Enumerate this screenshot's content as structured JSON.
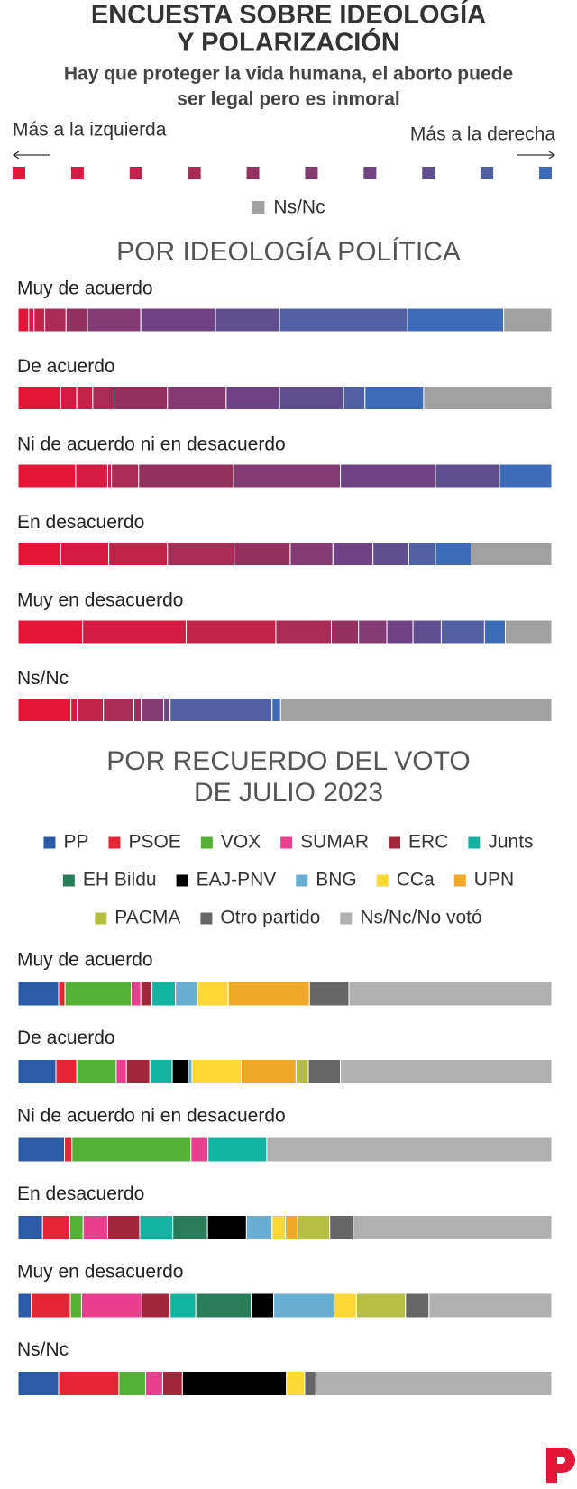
{
  "title_lines": [
    "ENCUESTA SOBRE IDEOLOGÍA",
    "Y POLARIZACIÓN"
  ],
  "subtitle_lines": [
    "Hay que proteger la vida humana, el aborto puede",
    "ser legal pero es inmoral"
  ],
  "chart_data": [
    {
      "type": "bar",
      "orientation": "horizontal",
      "stacked": true,
      "title_lines": [
        "POR IDEOLOGÍA POLÍTICA"
      ],
      "left_label": "Más a la izquierda",
      "right_label": "Más a la derecha",
      "xlim": [
        0,
        100
      ],
      "categories": [
        "Muy de acuerdo",
        "De acuerdo",
        "Ni de acuerdo ni en desacuerdo",
        "En desacuerdo",
        "Muy en desacuerdo",
        "Ns/Nc"
      ],
      "series": [
        {
          "color": "#e4163a",
          "values": [
            2,
            8,
            10.8,
            8,
            12.1,
            9.9
          ]
        },
        {
          "color": "#d41c42",
          "values": [
            1,
            3,
            6,
            9,
            19.4,
            1.2
          ]
        },
        {
          "color": "#c0244b",
          "values": [
            2,
            3,
            0.7,
            11,
            16.8,
            4.9
          ]
        },
        {
          "color": "#a82b55",
          "values": [
            4,
            4,
            5.1,
            12.5,
            10.4,
            5.7
          ]
        },
        {
          "color": "#93315e",
          "values": [
            4,
            10,
            17.8,
            10.5,
            5.1,
            1.4
          ]
        },
        {
          "color": "#843b73",
          "values": [
            10,
            11,
            20,
            8,
            5.3,
            4.2
          ]
        },
        {
          "color": "#6f4383",
          "values": [
            14,
            10,
            17.8,
            7.5,
            4.9,
            1.2
          ]
        },
        {
          "color": "#5f4f8f",
          "values": [
            12,
            12,
            12,
            6.7,
            5.3,
            0
          ]
        },
        {
          "color": "#5060a0",
          "values": [
            24,
            4,
            0,
            5,
            8.1,
            19.1
          ]
        },
        {
          "color": "#3d6bb8",
          "values": [
            18,
            11,
            9.8,
            6.8,
            3.9,
            1.6
          ]
        },
        {
          "name": "Ns/Nc",
          "color": "#a0a0a0",
          "values": [
            9,
            24,
            0,
            15,
            8.7,
            50.8
          ]
        }
      ]
    },
    {
      "type": "bar",
      "orientation": "horizontal",
      "stacked": true,
      "title_lines": [
        "POR RECUERDO DEL VOTO",
        "DE JULIO 2023"
      ],
      "xlim": [
        0,
        100
      ],
      "categories": [
        "Muy de acuerdo",
        "De acuerdo",
        "Ni de acuerdo ni en desacuerdo",
        "En desacuerdo",
        "Muy en desacuerdo",
        "Ns/Nc"
      ],
      "series": [
        {
          "name": "PP",
          "color": "#2b5aa6",
          "values": [
            7.6,
            7.1,
            8.7,
            4.6,
            2.5,
            7.6
          ]
        },
        {
          "name": "PSOE",
          "color": "#e42535",
          "values": [
            1.2,
            3.9,
            1.4,
            5.1,
            7.3,
            11.3
          ]
        },
        {
          "name": "VOX",
          "color": "#55b135",
          "values": [
            12.4,
            7.4,
            22.3,
            2.5,
            2.1,
            5
          ]
        },
        {
          "name": "SUMAR",
          "color": "#e8408f",
          "values": [
            1.8,
            1.9,
            3.2,
            4.6,
            11.3,
            3.2
          ]
        },
        {
          "name": "ERC",
          "color": "#a0283a",
          "values": [
            2.1,
            4.4,
            0,
            6,
            5.3,
            3.7
          ]
        },
        {
          "name": "Junts",
          "color": "#12b3a0",
          "values": [
            4.4,
            4.2,
            11,
            6.2,
            4.8,
            0
          ]
        },
        {
          "name": "EH Bildu",
          "color": "#2a7d5a",
          "values": [
            0,
            0,
            0,
            6.5,
            10.4,
            0
          ]
        },
        {
          "name": "EAJ-PNV",
          "color": "#000000",
          "values": [
            0,
            3,
            0,
            7.3,
            4.2,
            19.5
          ]
        },
        {
          "name": "BNG",
          "color": "#6aaed2",
          "values": [
            4.1,
            0.7,
            0,
            4.8,
            11.3,
            0
          ]
        },
        {
          "name": "CCa",
          "color": "#fdd835",
          "values": [
            5.8,
            9.2,
            0,
            2.5,
            4.2,
            3.4
          ]
        },
        {
          "name": "UPN",
          "color": "#f0a82a",
          "values": [
            15.2,
            10.3,
            0,
            2.3,
            0,
            0
          ]
        },
        {
          "name": "PACMA",
          "color": "#b5bf45",
          "values": [
            0,
            2.3,
            0,
            6,
            9.2,
            0
          ]
        },
        {
          "name": "Otro partido",
          "color": "#666666",
          "values": [
            7.4,
            6,
            0,
            4.4,
            4.4,
            2.1
          ]
        },
        {
          "name": "Ns/Nc/No votó",
          "color": "#b0b0b0",
          "values": [
            38,
            39.6,
            53.4,
            37.2,
            23,
            44.2
          ]
        }
      ]
    }
  ]
}
